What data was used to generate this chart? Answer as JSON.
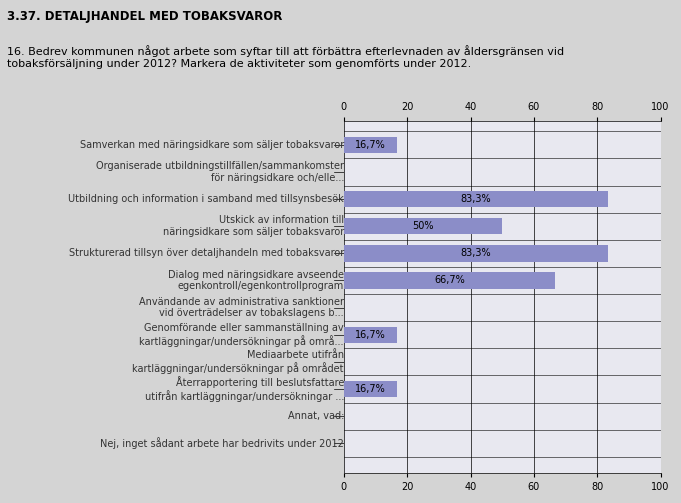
{
  "title": "3.37. DETALJHANDEL MED TOBAKSVAROR",
  "subtitle": "16. Bedrev kommunen något arbete som syftar till att förbättra efterlevnaden av åldersgränsen vid\ntobaksförsäljning under 2012? Markera de aktiviteter som genomförts under 2012.",
  "categories": [
    "Samverkan med näringsidkare som säljer tobaksvaror",
    "Organiserade utbildningstillfällen/sammankomster\nför näringsidkare och/elle...",
    "Utbildning och information i samband med tillsynsbesök",
    "Utskick av information till\nnäringsidkare som säljer tobaksvaror",
    "Strukturerad tillsyn över detaljhandeln med tobaksvaror",
    "Dialog med näringsidkare avseende\negenkontroll/egenkontrollprogram",
    "Användande av administrativa sanktioner\nvid överträdelser av tobakslagens b...",
    "Genomförande eller sammanställning av\nkartläggningar/undersökningar på områ...",
    "Mediaarbete utifrån\nkartläggningar/undersökningar på området",
    "Återrapportering till beslutsfattare\nutifrån kartläggningar/undersökningar ...",
    "Annat, vad:",
    "Nej, inget sådant arbete har bedrivits under 2012"
  ],
  "values": [
    16.7,
    0,
    83.3,
    50,
    83.3,
    66.7,
    0,
    16.7,
    0,
    16.7,
    0,
    0
  ],
  "bar_labels": [
    "16,7%",
    "",
    "83,3%",
    "50%",
    "83,3%",
    "66,7%",
    "",
    "16,7%",
    "",
    "16,7%",
    "",
    ""
  ],
  "bar_color": "#8b8dc8",
  "bg_color": "#d4d4d4",
  "plot_bg_color": "#e8e8f0",
  "xlim": [
    0,
    100
  ],
  "xticks": [
    0,
    20,
    40,
    60,
    80,
    100
  ],
  "title_fontsize": 8.5,
  "subtitle_fontsize": 8,
  "label_fontsize": 7,
  "bar_label_fontsize": 7,
  "tick_fontsize": 7
}
